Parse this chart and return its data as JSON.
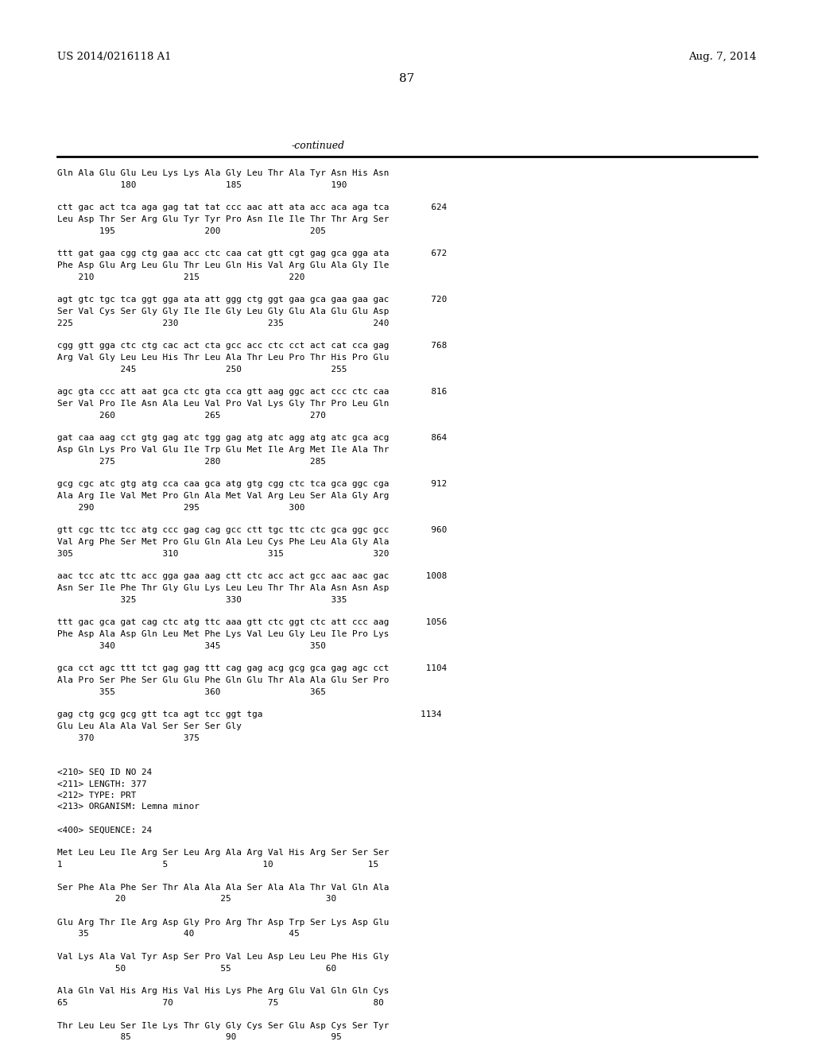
{
  "header_left": "US 2014/0216118 A1",
  "header_right": "Aug. 7, 2014",
  "page_number": "87",
  "continued_label": "-continued",
  "background_color": "#ffffff",
  "text_color": "#000000",
  "content_lines": [
    "Gln Ala Glu Glu Leu Lys Lys Ala Gly Leu Thr Ala Tyr Asn His Asn",
    "            180                 185                 190",
    "",
    "ctt gac act tca aga gag tat tat ccc aac att ata acc aca aga tca        624",
    "Leu Asp Thr Ser Arg Glu Tyr Tyr Pro Asn Ile Ile Thr Thr Arg Ser",
    "        195                 200                 205",
    "",
    "ttt gat gaa cgg ctg gaa acc ctc caa cat gtt cgt gag gca gga ata        672",
    "Phe Asp Glu Arg Leu Glu Thr Leu Gln His Val Arg Glu Ala Gly Ile",
    "    210                 215                 220",
    "",
    "agt gtc tgc tca ggt gga ata att ggg ctg ggt gaa gca gaa gaa gac        720",
    "Ser Val Cys Ser Gly Gly Ile Ile Gly Leu Gly Glu Ala Glu Glu Asp",
    "225                 230                 235                 240",
    "",
    "cgg gtt gga ctc ctg cac act cta gcc acc ctc cct act cat cca gag        768",
    "Arg Val Gly Leu Leu His Thr Leu Ala Thr Leu Pro Thr His Pro Glu",
    "            245                 250                 255",
    "",
    "agc gta ccc att aat gca ctc gta cca gtt aag ggc act ccc ctc caa        816",
    "Ser Val Pro Ile Asn Ala Leu Val Pro Val Lys Gly Thr Pro Leu Gln",
    "        260                 265                 270",
    "",
    "gat caa aag cct gtg gag atc tgg gag atg atc agg atg atc gca acg        864",
    "Asp Gln Lys Pro Val Glu Ile Trp Glu Met Ile Arg Met Ile Ala Thr",
    "        275                 280                 285",
    "",
    "gcg cgc atc gtg atg cca caa gca atg gtg cgg ctc tca gca ggc cga        912",
    "Ala Arg Ile Val Met Pro Gln Ala Met Val Arg Leu Ser Ala Gly Arg",
    "    290                 295                 300",
    "",
    "gtt cgc ttc tcc atg ccc gag cag gcc ctt tgc ttc ctc gca ggc gcc        960",
    "Val Arg Phe Ser Met Pro Glu Gln Ala Leu Cys Phe Leu Ala Gly Ala",
    "305                 310                 315                 320",
    "",
    "aac tcc atc ttc acc gga gaa aag ctt ctc acc act gcc aac aac gac       1008",
    "Asn Ser Ile Phe Thr Gly Glu Lys Leu Leu Thr Thr Ala Asn Asn Asp",
    "            325                 330                 335",
    "",
    "ttt gac gca gat cag ctc atg ttc aaa gtt ctc ggt ctc att ccc aag       1056",
    "Phe Asp Ala Asp Gln Leu Met Phe Lys Val Leu Gly Leu Ile Pro Lys",
    "        340                 345                 350",
    "",
    "gca cct agc ttt tct gag gag ttt cag gag acg gcg gca gag agc cct       1104",
    "Ala Pro Ser Phe Ser Glu Glu Phe Gln Glu Thr Ala Ala Glu Ser Pro",
    "        355                 360                 365",
    "",
    "gag ctg gcg gcg gtt tca agt tcc ggt tga                              1134",
    "Glu Leu Ala Ala Val Ser Ser Ser Gly",
    "    370                 375",
    "",
    "",
    "<210> SEQ ID NO 24",
    "<211> LENGTH: 377",
    "<212> TYPE: PRT",
    "<213> ORGANISM: Lemna minor",
    "",
    "<400> SEQUENCE: 24",
    "",
    "Met Leu Leu Ile Arg Ser Leu Arg Ala Arg Val His Arg Ser Ser Ser",
    "1                   5                  10                  15",
    "",
    "Ser Phe Ala Phe Ser Thr Ala Ala Ala Ser Ala Ala Thr Val Gln Ala",
    "           20                  25                  30",
    "",
    "Glu Arg Thr Ile Arg Asp Gly Pro Arg Thr Asp Trp Ser Lys Asp Glu",
    "    35                  40                  45",
    "",
    "Val Lys Ala Val Tyr Asp Ser Pro Val Leu Asp Leu Leu Phe His Gly",
    "           50                  55                  60",
    "",
    "Ala Gln Val His Arg His Val His Lys Phe Arg Glu Val Gln Gln Cys",
    "65                  70                  75                  80",
    "",
    "Thr Leu Leu Ser Ile Lys Thr Gly Gly Cys Ser Glu Asp Cys Ser Tyr",
    "            85                  90                  95"
  ]
}
